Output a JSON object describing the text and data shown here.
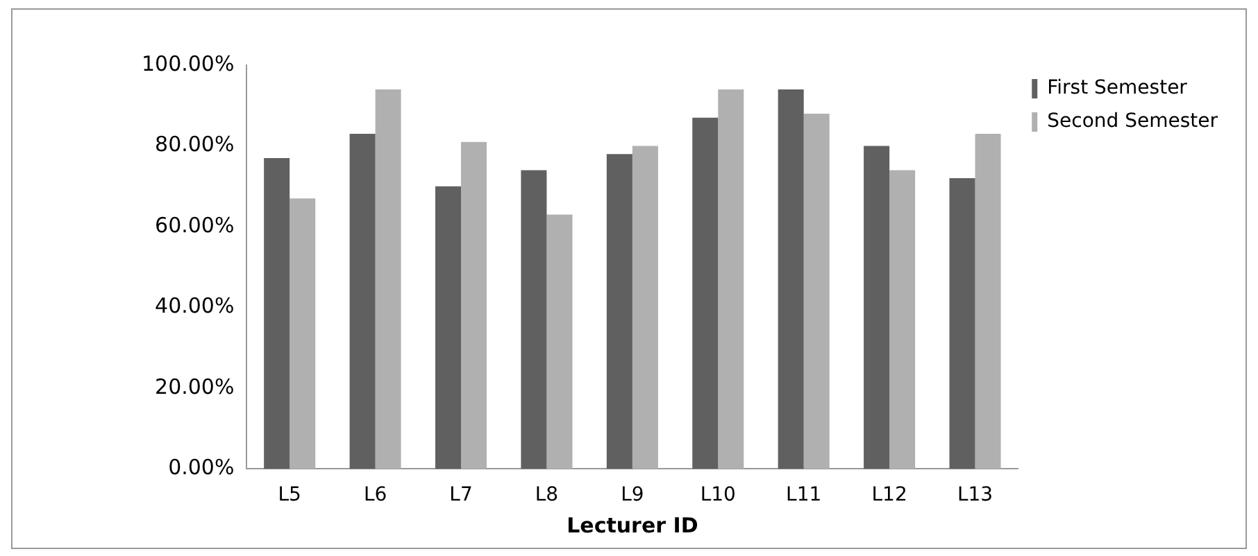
{
  "chart_data": {
    "type": "bar",
    "xlabel": "Lecturer ID",
    "categories": [
      "L5",
      "L6",
      "L7",
      "L8",
      "L9",
      "L10",
      "L11",
      "L12",
      "L13"
    ],
    "series": [
      {
        "name": "First Semester",
        "color": "#606060",
        "values": [
          77,
          83,
          70,
          74,
          78,
          87,
          94,
          80,
          72
        ]
      },
      {
        "name": "Second Semester",
        "color": "#b0b0b0",
        "values": [
          67,
          94,
          81,
          63,
          80,
          94,
          88,
          74,
          83
        ]
      }
    ],
    "ylim": [
      0,
      100
    ],
    "yticks": [
      {
        "value": 0,
        "label": "0.00%"
      },
      {
        "value": 20,
        "label": "20.00%"
      },
      {
        "value": 40,
        "label": "40.00%"
      },
      {
        "value": 60,
        "label": "60.00%"
      },
      {
        "value": 80,
        "label": "80.00%"
      },
      {
        "value": 100,
        "label": "100.00%"
      }
    ],
    "grid": false,
    "legend": "right"
  }
}
